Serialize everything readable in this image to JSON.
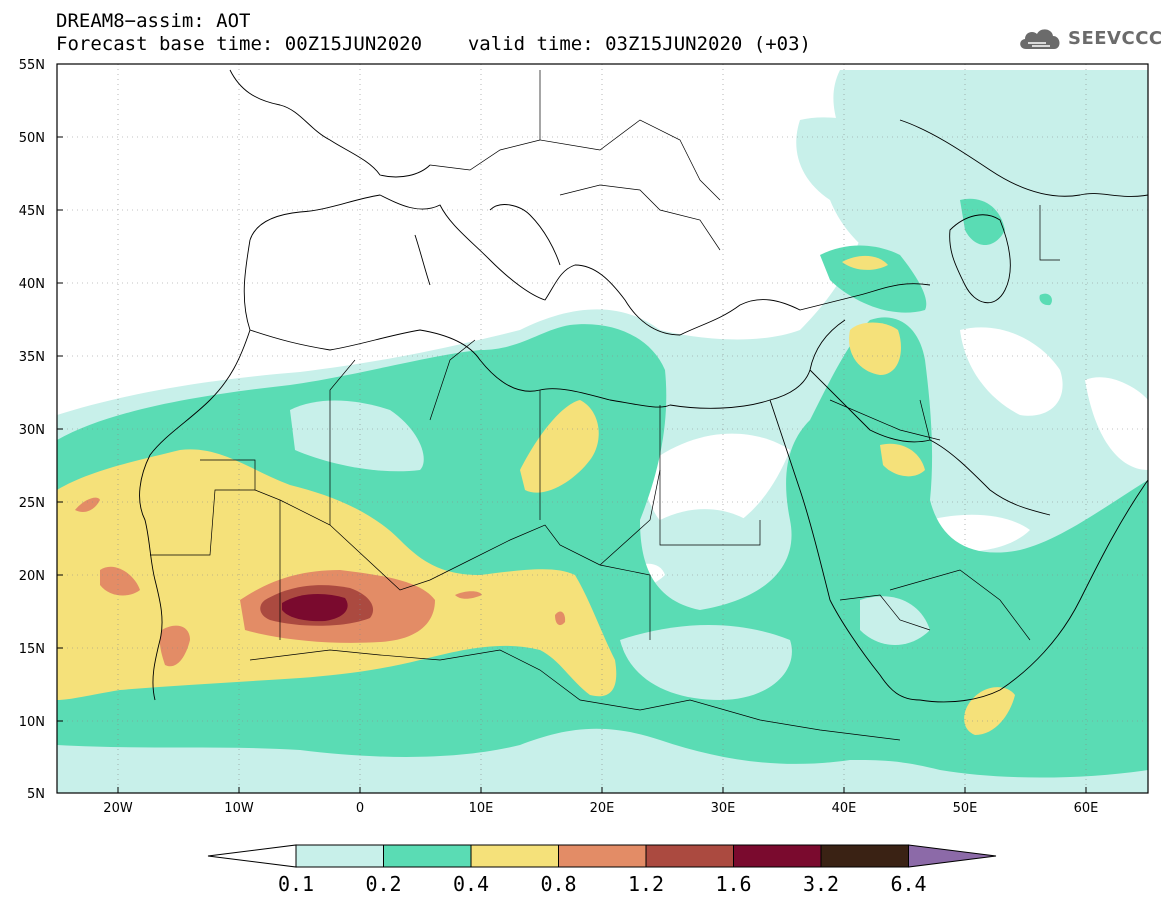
{
  "title": {
    "line1": "DREAM8−assim: AOT",
    "base_time": "Forecast base time: 00Z15JUN2020",
    "valid_time": "valid time: 03Z15JUN2020 (+03)"
  },
  "brand": {
    "name": "SEEVCCC",
    "icon": "cloud-icon"
  },
  "map": {
    "variable": "AOT",
    "region": "North Africa, Europe and Middle East",
    "lon_labels": [
      "20W",
      "10W",
      "0",
      "10E",
      "20E",
      "30E",
      "40E",
      "50E",
      "60E"
    ],
    "lat_labels": [
      "55N",
      "50N",
      "45N",
      "40N",
      "35N",
      "30N",
      "25N",
      "20N",
      "15N",
      "10N",
      "5N"
    ],
    "grid": true
  },
  "colorbar": {
    "labels": [
      "0.1",
      "0.2",
      "0.4",
      "0.8",
      "1.2",
      "1.6",
      "3.2",
      "6.4"
    ],
    "colors": [
      "#ffffff",
      "#c8f0ea",
      "#5adcb4",
      "#f5e17a",
      "#e38c66",
      "#ab4a40",
      "#7a0a2e",
      "#3a2214",
      "#8c6aa8"
    ]
  }
}
